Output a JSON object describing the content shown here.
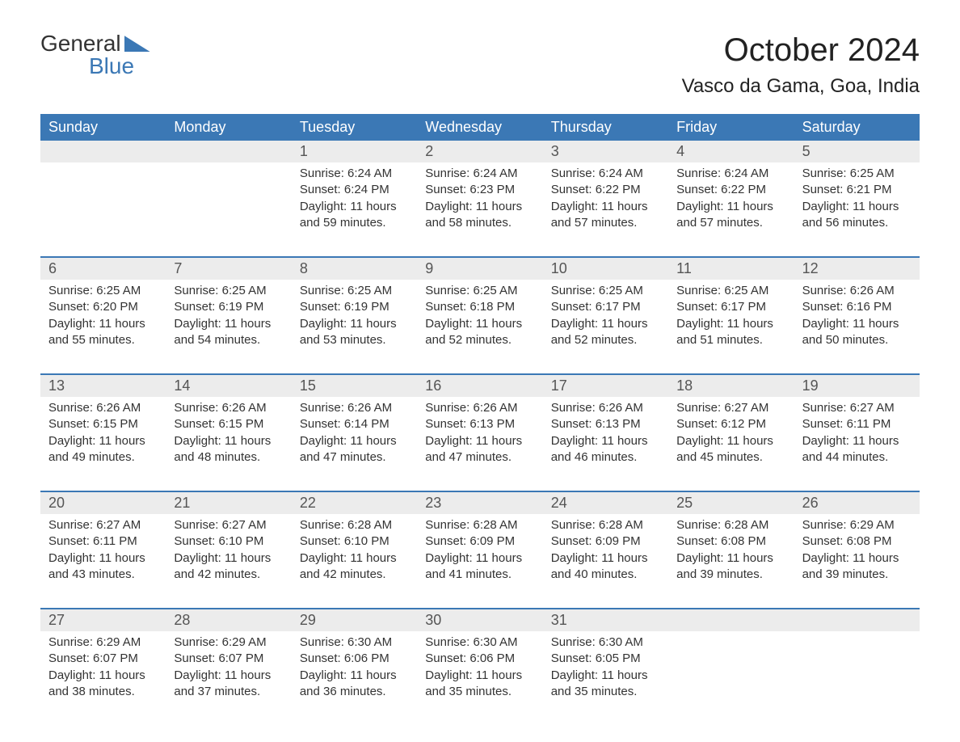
{
  "brand": {
    "text_general": "General",
    "text_blue": "Blue",
    "brand_color": "#3b78b5",
    "text_color": "#333333"
  },
  "header": {
    "month_title": "October 2024",
    "location": "Vasco da Gama, Goa, India",
    "title_fontsize": 40,
    "location_fontsize": 24
  },
  "calendar": {
    "header_bg": "#3b78b5",
    "header_fg": "#ffffff",
    "daynum_bg": "#ececec",
    "week_divider_color": "#3b78b5",
    "body_text_color": "#333333",
    "weekdays": [
      "Sunday",
      "Monday",
      "Tuesday",
      "Wednesday",
      "Thursday",
      "Friday",
      "Saturday"
    ],
    "labels": {
      "sunrise": "Sunrise:",
      "sunset": "Sunset:",
      "daylight": "Daylight:"
    },
    "weeks": [
      [
        null,
        null,
        {
          "day": "1",
          "sunrise": "6:24 AM",
          "sunset": "6:24 PM",
          "daylight": "11 hours and 59 minutes."
        },
        {
          "day": "2",
          "sunrise": "6:24 AM",
          "sunset": "6:23 PM",
          "daylight": "11 hours and 58 minutes."
        },
        {
          "day": "3",
          "sunrise": "6:24 AM",
          "sunset": "6:22 PM",
          "daylight": "11 hours and 57 minutes."
        },
        {
          "day": "4",
          "sunrise": "6:24 AM",
          "sunset": "6:22 PM",
          "daylight": "11 hours and 57 minutes."
        },
        {
          "day": "5",
          "sunrise": "6:25 AM",
          "sunset": "6:21 PM",
          "daylight": "11 hours and 56 minutes."
        }
      ],
      [
        {
          "day": "6",
          "sunrise": "6:25 AM",
          "sunset": "6:20 PM",
          "daylight": "11 hours and 55 minutes."
        },
        {
          "day": "7",
          "sunrise": "6:25 AM",
          "sunset": "6:19 PM",
          "daylight": "11 hours and 54 minutes."
        },
        {
          "day": "8",
          "sunrise": "6:25 AM",
          "sunset": "6:19 PM",
          "daylight": "11 hours and 53 minutes."
        },
        {
          "day": "9",
          "sunrise": "6:25 AM",
          "sunset": "6:18 PM",
          "daylight": "11 hours and 52 minutes."
        },
        {
          "day": "10",
          "sunrise": "6:25 AM",
          "sunset": "6:17 PM",
          "daylight": "11 hours and 52 minutes."
        },
        {
          "day": "11",
          "sunrise": "6:25 AM",
          "sunset": "6:17 PM",
          "daylight": "11 hours and 51 minutes."
        },
        {
          "day": "12",
          "sunrise": "6:26 AM",
          "sunset": "6:16 PM",
          "daylight": "11 hours and 50 minutes."
        }
      ],
      [
        {
          "day": "13",
          "sunrise": "6:26 AM",
          "sunset": "6:15 PM",
          "daylight": "11 hours and 49 minutes."
        },
        {
          "day": "14",
          "sunrise": "6:26 AM",
          "sunset": "6:15 PM",
          "daylight": "11 hours and 48 minutes."
        },
        {
          "day": "15",
          "sunrise": "6:26 AM",
          "sunset": "6:14 PM",
          "daylight": "11 hours and 47 minutes."
        },
        {
          "day": "16",
          "sunrise": "6:26 AM",
          "sunset": "6:13 PM",
          "daylight": "11 hours and 47 minutes."
        },
        {
          "day": "17",
          "sunrise": "6:26 AM",
          "sunset": "6:13 PM",
          "daylight": "11 hours and 46 minutes."
        },
        {
          "day": "18",
          "sunrise": "6:27 AM",
          "sunset": "6:12 PM",
          "daylight": "11 hours and 45 minutes."
        },
        {
          "day": "19",
          "sunrise": "6:27 AM",
          "sunset": "6:11 PM",
          "daylight": "11 hours and 44 minutes."
        }
      ],
      [
        {
          "day": "20",
          "sunrise": "6:27 AM",
          "sunset": "6:11 PM",
          "daylight": "11 hours and 43 minutes."
        },
        {
          "day": "21",
          "sunrise": "6:27 AM",
          "sunset": "6:10 PM",
          "daylight": "11 hours and 42 minutes."
        },
        {
          "day": "22",
          "sunrise": "6:28 AM",
          "sunset": "6:10 PM",
          "daylight": "11 hours and 42 minutes."
        },
        {
          "day": "23",
          "sunrise": "6:28 AM",
          "sunset": "6:09 PM",
          "daylight": "11 hours and 41 minutes."
        },
        {
          "day": "24",
          "sunrise": "6:28 AM",
          "sunset": "6:09 PM",
          "daylight": "11 hours and 40 minutes."
        },
        {
          "day": "25",
          "sunrise": "6:28 AM",
          "sunset": "6:08 PM",
          "daylight": "11 hours and 39 minutes."
        },
        {
          "day": "26",
          "sunrise": "6:29 AM",
          "sunset": "6:08 PM",
          "daylight": "11 hours and 39 minutes."
        }
      ],
      [
        {
          "day": "27",
          "sunrise": "6:29 AM",
          "sunset": "6:07 PM",
          "daylight": "11 hours and 38 minutes."
        },
        {
          "day": "28",
          "sunrise": "6:29 AM",
          "sunset": "6:07 PM",
          "daylight": "11 hours and 37 minutes."
        },
        {
          "day": "29",
          "sunrise": "6:30 AM",
          "sunset": "6:06 PM",
          "daylight": "11 hours and 36 minutes."
        },
        {
          "day": "30",
          "sunrise": "6:30 AM",
          "sunset": "6:06 PM",
          "daylight": "11 hours and 35 minutes."
        },
        {
          "day": "31",
          "sunrise": "6:30 AM",
          "sunset": "6:05 PM",
          "daylight": "11 hours and 35 minutes."
        },
        null,
        null
      ]
    ]
  }
}
